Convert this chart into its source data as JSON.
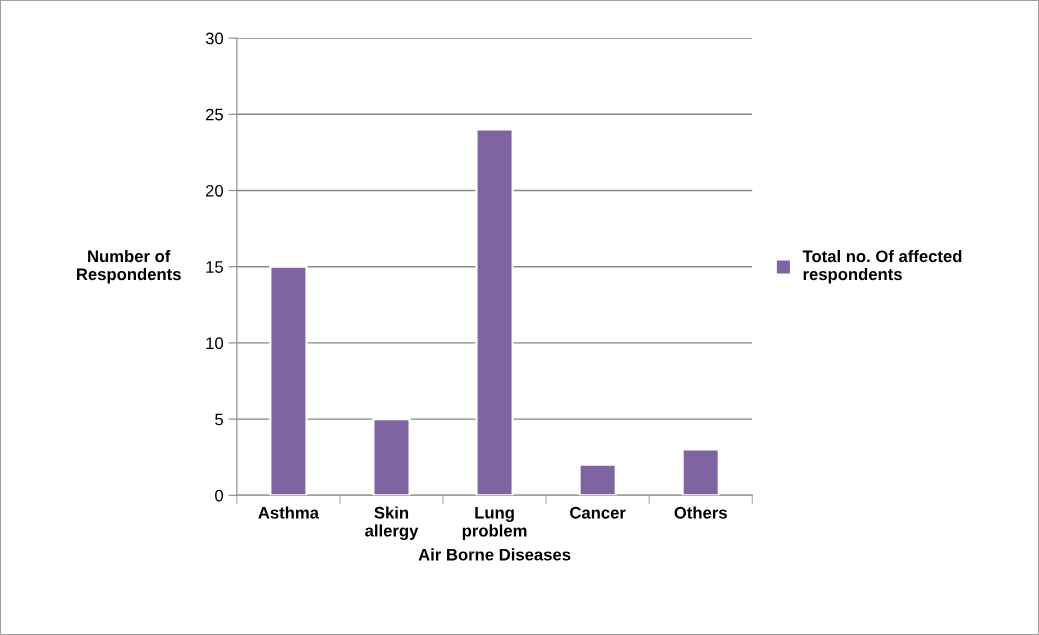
{
  "chart_data": {
    "type": "bar",
    "categories": [
      "Asthma",
      "Skin allergy",
      "Lung problem",
      "Cancer",
      "Others"
    ],
    "series": [
      {
        "name": "Total no. Of affected respondents",
        "color": "#8064a2",
        "values": [
          15,
          5,
          24,
          2,
          3
        ]
      }
    ],
    "xlabel": "Air Borne Diseases",
    "ylabel": "Number of Respondents",
    "ylim": [
      0,
      30
    ],
    "yticks": [
      0,
      5,
      10,
      15,
      20,
      25,
      30
    ],
    "grid": "y",
    "legend": "right"
  }
}
